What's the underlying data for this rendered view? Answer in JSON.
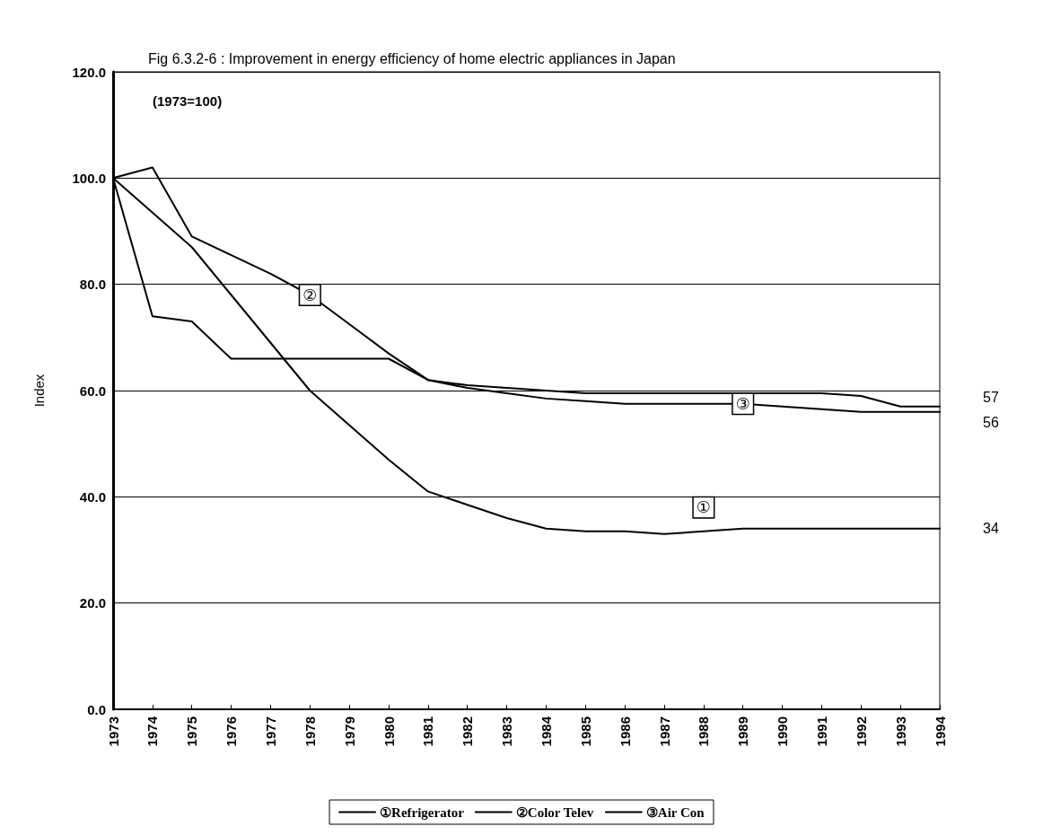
{
  "chart_data": {
    "type": "line",
    "title": "Fig 6.3.2-6 : Improvement in energy efficiency of home electric appliances in Japan",
    "subtitle": "(1973=100)",
    "ylabel": "Index",
    "categories": [
      "1973",
      "1974",
      "1975",
      "1976",
      "1977",
      "1978",
      "1979",
      "1980",
      "1981",
      "1982",
      "1983",
      "1984",
      "1985",
      "1986",
      "1987",
      "1988",
      "1989",
      "1990",
      "1991",
      "1992",
      "1993",
      "1994"
    ],
    "series": [
      {
        "name": "①Refrigerator",
        "color": "#000000",
        "values": [
          100,
          93.5,
          87,
          78,
          69,
          60,
          53.5,
          47,
          41,
          38.5,
          36,
          34,
          33.5,
          33.5,
          33,
          33.5,
          34,
          34,
          34,
          34,
          34,
          34
        ]
      },
      {
        "name": "②Color Telev",
        "color": "#000000",
        "values": [
          100,
          102,
          89,
          85.5,
          82,
          78,
          72.5,
          67,
          62,
          61,
          60.5,
          60,
          59.5,
          59.5,
          59.5,
          59.5,
          59.5,
          59.5,
          59.5,
          59,
          57,
          57
        ]
      },
      {
        "name": "③Air Con",
        "color": "#000000",
        "values": [
          100,
          74,
          73,
          66,
          66,
          66,
          66,
          66,
          62,
          60.5,
          59.5,
          58.5,
          58,
          57.5,
          57.5,
          57.5,
          57.5,
          57,
          56.5,
          56,
          56,
          56
        ]
      }
    ],
    "ylim": [
      0,
      120
    ],
    "yticks": [
      {
        "value": 0,
        "label": "0.0"
      },
      {
        "value": 20,
        "label": "20.0"
      },
      {
        "value": 40,
        "label": "40.0"
      },
      {
        "value": 60,
        "label": "60.0"
      },
      {
        "value": 80,
        "label": "80.0"
      },
      {
        "value": 100,
        "label": "100.0"
      },
      {
        "value": 120,
        "label": "120.0"
      }
    ],
    "grid": "y",
    "legend": "bottom",
    "marker": "none",
    "line_style": "solid",
    "annotations": [
      {
        "text": "①",
        "x": "1988",
        "y": 38
      },
      {
        "text": "②",
        "x": "1978",
        "y": 78
      },
      {
        "text": "③",
        "x": "1989",
        "y": 57.5
      },
      {
        "text": "57",
        "x": "1994",
        "y": 57
      },
      {
        "text": "56",
        "x": "1994",
        "y": 56
      },
      {
        "text": "34",
        "x": "1994",
        "y": 34
      }
    ]
  }
}
